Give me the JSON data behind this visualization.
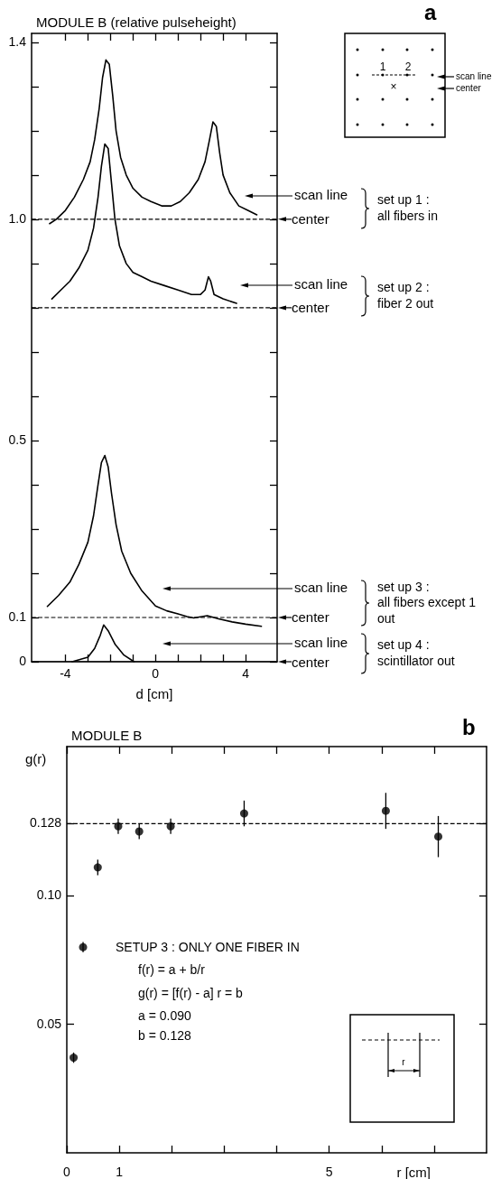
{
  "chart_data": [
    {
      "type": "line",
      "title": "MODULE B (relative pulseheight)",
      "xlabel": "d [cm]",
      "xlim": [
        -5.5,
        5.4
      ],
      "xticks": [
        -4,
        {
          "value": -3,
          "label": null
        },
        {
          "value": -2,
          "label": null
        },
        {
          "value": -1,
          "label": null
        },
        0,
        {
          "value": 1,
          "label": null
        },
        {
          "value": 2,
          "label": null
        },
        {
          "value": 3,
          "label": null
        },
        4
      ],
      "ylim": [
        0,
        1.42
      ],
      "yticks": [
        0,
        0.1,
        {
          "value": 0.2,
          "label": null
        },
        {
          "value": 0.3,
          "label": null
        },
        {
          "value": 0.4,
          "label": null
        },
        0.5,
        {
          "value": 0.6,
          "label": null
        },
        {
          "value": 0.7,
          "label": null
        },
        {
          "value": 0.8,
          "label": null
        },
        {
          "value": 0.9,
          "label": null
        },
        {
          "value": 1,
          "label": "1.0"
        },
        {
          "value": 1.1,
          "label": null
        },
        {
          "value": 1.2,
          "label": null
        },
        {
          "value": 1.3,
          "label": null
        },
        1.4
      ],
      "marker": "none",
      "line_style": "solid",
      "series": [
        {
          "color": "#000000",
          "x": [
            -4.7,
            -4.4,
            -4.0,
            -3.6,
            -3.2,
            -2.9,
            -2.7,
            -2.5,
            -2.35,
            -2.2,
            -2.05,
            -1.9,
            -1.75,
            -1.55,
            -1.3,
            -1.0,
            -0.6,
            -0.2,
            0.3,
            0.7,
            1.1,
            1.5,
            1.9,
            2.2,
            2.4,
            2.55,
            2.7,
            2.85,
            3.0,
            3.3,
            3.7,
            4.1,
            4.5
          ],
          "values": [
            0.99,
            1.0,
            1.02,
            1.05,
            1.09,
            1.13,
            1.18,
            1.25,
            1.32,
            1.36,
            1.35,
            1.28,
            1.2,
            1.14,
            1.1,
            1.07,
            1.05,
            1.04,
            1.03,
            1.03,
            1.04,
            1.06,
            1.09,
            1.13,
            1.18,
            1.22,
            1.21,
            1.15,
            1.1,
            1.06,
            1.03,
            1.02,
            1.01
          ]
        },
        {
          "color": "#000000",
          "x": [
            -4.6,
            -4.2,
            -3.8,
            -3.4,
            -3.0,
            -2.75,
            -2.55,
            -2.4,
            -2.25,
            -2.1,
            -1.95,
            -1.8,
            -1.6,
            -1.3,
            -1.0,
            -0.6,
            -0.2,
            0.4,
            1.0,
            1.6,
            2.0,
            2.2,
            2.35,
            2.45,
            2.6,
            3.0,
            3.6
          ],
          "values": [
            0.82,
            0.84,
            0.86,
            0.89,
            0.93,
            0.98,
            1.05,
            1.12,
            1.17,
            1.16,
            1.08,
            1.0,
            0.94,
            0.9,
            0.88,
            0.87,
            0.86,
            0.85,
            0.84,
            0.83,
            0.83,
            0.84,
            0.87,
            0.86,
            0.83,
            0.82,
            0.81
          ]
        },
        {
          "color": "#000000",
          "x": [
            -4.8,
            -4.3,
            -3.8,
            -3.4,
            -3.0,
            -2.75,
            -2.55,
            -2.4,
            -2.25,
            -2.1,
            -1.95,
            -1.75,
            -1.5,
            -1.1,
            -0.6,
            0,
            0.5,
            1.0,
            1.4,
            1.7,
            2.3,
            2.8,
            3.4,
            4.0,
            4.7
          ],
          "values": [
            0.125,
            0.15,
            0.18,
            0.22,
            0.27,
            0.33,
            0.4,
            0.45,
            0.466,
            0.44,
            0.38,
            0.31,
            0.25,
            0.2,
            0.16,
            0.126,
            0.115,
            0.108,
            0.102,
            0.099,
            0.104,
            0.097,
            0.09,
            0.085,
            0.08
          ]
        },
        {
          "color": "#000000",
          "x": [
            -3.7,
            -3.0,
            -2.7,
            -2.45,
            -2.3,
            -2.1,
            -1.8,
            -1.4,
            -0.95
          ],
          "values": [
            0,
            0.01,
            0.03,
            0.06,
            0.083,
            0.07,
            0.04,
            0.015,
            0
          ]
        }
      ],
      "ref_lines": [
        {
          "axis": "y",
          "value": 1,
          "label": "center",
          "line_style": "dashed"
        },
        {
          "axis": "y",
          "value": 0.8,
          "label": "center",
          "line_style": "dashed"
        },
        {
          "axis": "y",
          "value": 0.1,
          "label": "center",
          "line_style": "dashed"
        },
        {
          "axis": "y",
          "value": 0,
          "label": "center",
          "line_style": "solid"
        }
      ],
      "annotations": [
        "a",
        "1",
        "2",
        "×",
        "scan line",
        "center",
        "scan line",
        "set up 1 :\nall fibers in",
        "scan line",
        "set up 2 :\nfiber 2 out",
        "scan line",
        "set up 3 :\nall fibers except 1\nout",
        "scan line",
        "set up 4 :\nscintillator out"
      ]
    },
    {
      "type": "scatter",
      "title": "MODULE B",
      "xlabel": "r [cm]",
      "ylabel": "g(r)",
      "xlim": [
        0,
        8
      ],
      "xticks": [
        0,
        1,
        {
          "value": 2,
          "label": null
        },
        {
          "value": 3,
          "label": null
        },
        {
          "value": 4,
          "label": null
        },
        5,
        {
          "value": 6,
          "label": null
        },
        {
          "value": 7,
          "label": null
        }
      ],
      "ylim": [
        0,
        0.158
      ],
      "yticks": [
        0.05,
        {
          "value": 0.1,
          "label": "0.10"
        },
        0.128
      ],
      "marker": "circle",
      "x": [
        0.13,
        0.31,
        0.59,
        0.98,
        1.38,
        1.98,
        3.38,
        6.08,
        7.08
      ],
      "series": [
        {
          "color": "#000000",
          "values": [
            0.037,
            0.08,
            0.111,
            0.127,
            0.125,
            0.127,
            0.132,
            0.133,
            0.123
          ],
          "errors": [
            0.002,
            0.002,
            0.003,
            0.003,
            0.003,
            0.003,
            0.005,
            0.007,
            0.008
          ]
        }
      ],
      "ref_lines": [
        {
          "axis": "y",
          "value": 0.128,
          "line_style": "dashed"
        }
      ],
      "annotations": [
        "b",
        "SETUP 3 : ONLY ONE FIBER IN",
        "f(r) = a + b/r",
        "g(r) = [f(r) - a] r = b",
        "a = 0.090",
        "b = 0.128",
        "r"
      ]
    }
  ]
}
